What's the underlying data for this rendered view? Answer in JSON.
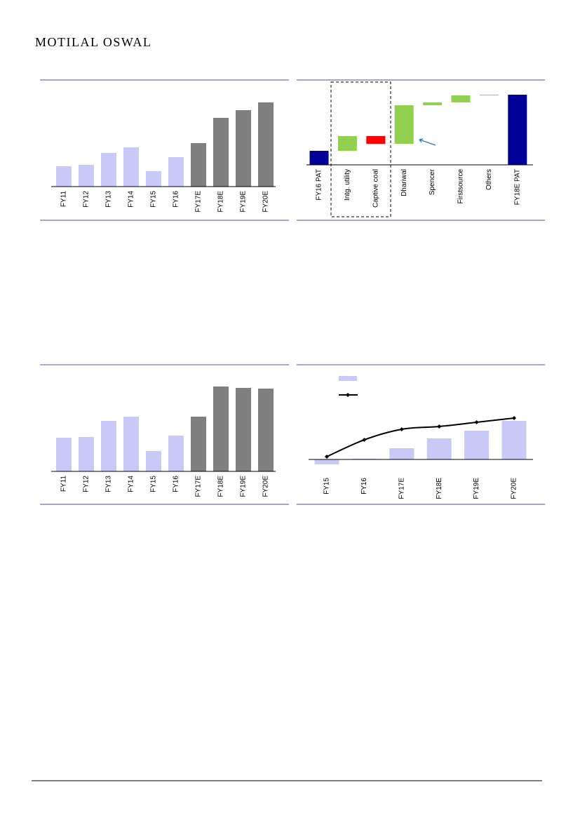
{
  "header": {
    "brand": "MOTILAL OSWAL"
  },
  "chart_data": [
    {
      "type": "bar",
      "categories": [
        "FY11",
        "FY12",
        "FY13",
        "FY14",
        "FY15",
        "FY16",
        "FY17E",
        "FY18E",
        "FY19E",
        "FY20E"
      ],
      "values": [
        29,
        31,
        48,
        56,
        22,
        42,
        62,
        98,
        109,
        120
      ],
      "colors": [
        "#c9c9f7",
        "#c9c9f7",
        "#c9c9f7",
        "#c9c9f7",
        "#c9c9f7",
        "#c9c9f7",
        "#7f7f7f",
        "#7f7f7f",
        "#7f7f7f",
        "#7f7f7f"
      ],
      "ylim": [
        0,
        152
      ]
    },
    {
      "type": "waterfall",
      "categories": [
        "FY16 PAT",
        "Intg. utility",
        "Captive coal",
        "Dhariwal",
        "Spencer",
        "Firstsource",
        "Others",
        "FY18E PAT"
      ],
      "values": [
        20,
        21,
        -11,
        55,
        4,
        10,
        1,
        100
      ],
      "colors": [
        "#000099",
        "#92d050",
        "#ff0000",
        "#92d050",
        "#92d050",
        "#92d050",
        "#92d050",
        "#000099"
      ],
      "totals": [
        0,
        7
      ],
      "ylim": [
        0,
        121
      ]
    },
    {
      "type": "bar",
      "categories": [
        "FY11",
        "FY12",
        "FY13",
        "FY14",
        "FY15",
        "FY16",
        "FY17E",
        "FY18E",
        "FY19E",
        "FY20E"
      ],
      "values": [
        48,
        49,
        72,
        78,
        29,
        51,
        78,
        121,
        119,
        118
      ],
      "colors": [
        "#c9c9f7",
        "#c9c9f7",
        "#c9c9f7",
        "#c9c9f7",
        "#c9c9f7",
        "#c9c9f7",
        "#7f7f7f",
        "#7f7f7f",
        "#7f7f7f",
        "#7f7f7f"
      ],
      "ylim": [
        0,
        152
      ]
    },
    {
      "type": "combo",
      "categories": [
        "FY15",
        "FY16",
        "FY17E",
        "FY18E",
        "FY19E",
        "FY20E"
      ],
      "series": [
        {
          "type": "bar",
          "color": "#c9c9f7",
          "values": [
            -7,
            1,
            16,
            30,
            41,
            55
          ]
        },
        {
          "type": "line",
          "color": "#000000",
          "values": [
            4,
            28,
            43,
            47,
            53,
            59
          ]
        }
      ],
      "ylim": [
        -10,
        135
      ]
    }
  ]
}
